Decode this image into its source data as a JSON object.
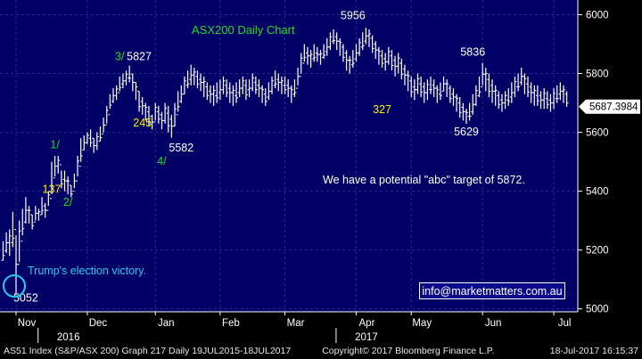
{
  "chart_data": {
    "type": "bar",
    "title": "ASX200 Daily Chart",
    "ylim": [
      4990,
      6050
    ],
    "yticks": [
      5000,
      5200,
      5400,
      5600,
      5800,
      6000
    ],
    "months": [
      {
        "label": "Nov",
        "x": 0
      },
      {
        "label": "Dec",
        "x": 22
      },
      {
        "label": "Jan",
        "x": 43
      },
      {
        "label": "Feb",
        "x": 63
      },
      {
        "label": "Mar",
        "x": 83
      },
      {
        "label": "Apr",
        "x": 105
      },
      {
        "label": "May",
        "x": 122
      },
      {
        "label": "Jun",
        "x": 144
      },
      {
        "label": "Jul",
        "x": 166
      }
    ],
    "years": [
      {
        "label": "2016",
        "x": 9
      },
      {
        "label": "2017",
        "x": 101
      }
    ],
    "last_value": "5687.3984",
    "last_value_num": 5687.3984,
    "bars": [
      [
        -4,
        5230,
        5165
      ],
      [
        -3,
        5260,
        5190
      ],
      [
        -2,
        5270,
        5180
      ],
      [
        -1,
        5330,
        5210
      ],
      [
        0,
        5250,
        5052
      ],
      [
        1,
        5300,
        5160
      ],
      [
        2,
        5340,
        5250
      ],
      [
        3,
        5380,
        5290
      ],
      [
        4,
        5350,
        5290
      ],
      [
        5,
        5320,
        5270
      ],
      [
        6,
        5350,
        5300
      ],
      [
        7,
        5340,
        5300
      ],
      [
        8,
        5380,
        5320
      ],
      [
        9,
        5360,
        5310
      ],
      [
        10,
        5400,
        5350
      ],
      [
        11,
        5500,
        5390
      ],
      [
        12,
        5520,
        5450
      ],
      [
        13,
        5520,
        5460
      ],
      [
        14,
        5470,
        5410
      ],
      [
        15,
        5470,
        5400
      ],
      [
        16,
        5450,
        5390
      ],
      [
        17,
        5420,
        5380
      ],
      [
        18,
        5460,
        5410
      ],
      [
        19,
        5520,
        5450
      ],
      [
        20,
        5580,
        5500
      ],
      [
        21,
        5590,
        5540
      ],
      [
        22,
        5600,
        5560
      ],
      [
        23,
        5610,
        5550
      ],
      [
        24,
        5580,
        5530
      ],
      [
        25,
        5600,
        5540
      ],
      [
        26,
        5620,
        5570
      ],
      [
        27,
        5650,
        5600
      ],
      [
        28,
        5690,
        5630
      ],
      [
        29,
        5730,
        5680
      ],
      [
        30,
        5750,
        5700
      ],
      [
        31,
        5760,
        5710
      ],
      [
        32,
        5790,
        5740
      ],
      [
        33,
        5800,
        5750
      ],
      [
        34,
        5810,
        5760
      ],
      [
        35,
        5827,
        5770
      ],
      [
        36,
        5800,
        5740
      ],
      [
        37,
        5770,
        5710
      ],
      [
        38,
        5740,
        5670
      ],
      [
        39,
        5720,
        5660
      ],
      [
        40,
        5700,
        5640
      ],
      [
        41,
        5690,
        5620
      ],
      [
        42,
        5660,
        5610
      ],
      [
        43,
        5700,
        5640
      ],
      [
        44,
        5690,
        5630
      ],
      [
        45,
        5670,
        5610
      ],
      [
        46,
        5700,
        5630
      ],
      [
        47,
        5690,
        5600
      ],
      [
        48,
        5660,
        5582
      ],
      [
        49,
        5700,
        5620
      ],
      [
        50,
        5740,
        5670
      ],
      [
        51,
        5760,
        5700
      ],
      [
        52,
        5790,
        5730
      ],
      [
        53,
        5810,
        5750
      ],
      [
        54,
        5830,
        5760
      ],
      [
        55,
        5820,
        5760
      ],
      [
        56,
        5810,
        5750
      ],
      [
        57,
        5800,
        5740
      ],
      [
        58,
        5790,
        5720
      ],
      [
        59,
        5770,
        5710
      ],
      [
        60,
        5760,
        5700
      ],
      [
        61,
        5760,
        5690
      ],
      [
        62,
        5770,
        5700
      ],
      [
        63,
        5780,
        5710
      ],
      [
        64,
        5790,
        5730
      ],
      [
        65,
        5780,
        5720
      ],
      [
        66,
        5770,
        5700
      ],
      [
        67,
        5760,
        5690
      ],
      [
        68,
        5770,
        5700
      ],
      [
        69,
        5780,
        5720
      ],
      [
        70,
        5790,
        5730
      ],
      [
        71,
        5780,
        5710
      ],
      [
        72,
        5780,
        5720
      ],
      [
        73,
        5800,
        5740
      ],
      [
        74,
        5790,
        5730
      ],
      [
        75,
        5780,
        5720
      ],
      [
        76,
        5760,
        5700
      ],
      [
        77,
        5750,
        5690
      ],
      [
        78,
        5770,
        5710
      ],
      [
        79,
        5790,
        5730
      ],
      [
        80,
        5810,
        5750
      ],
      [
        81,
        5800,
        5740
      ],
      [
        82,
        5790,
        5730
      ],
      [
        83,
        5790,
        5730
      ],
      [
        84,
        5780,
        5720
      ],
      [
        85,
        5760,
        5700
      ],
      [
        86,
        5780,
        5720
      ],
      [
        87,
        5820,
        5760
      ],
      [
        88,
        5870,
        5800
      ],
      [
        89,
        5900,
        5840
      ],
      [
        90,
        5890,
        5830
      ],
      [
        91,
        5880,
        5820
      ],
      [
        92,
        5900,
        5840
      ],
      [
        93,
        5890,
        5840
      ],
      [
        94,
        5880,
        5830
      ],
      [
        95,
        5900,
        5850
      ],
      [
        96,
        5920,
        5860
      ],
      [
        97,
        5940,
        5880
      ],
      [
        98,
        5950,
        5900
      ],
      [
        99,
        5940,
        5880
      ],
      [
        100,
        5920,
        5860
      ],
      [
        101,
        5900,
        5840
      ],
      [
        102,
        5880,
        5810
      ],
      [
        103,
        5860,
        5800
      ],
      [
        104,
        5880,
        5820
      ],
      [
        105,
        5900,
        5840
      ],
      [
        106,
        5920,
        5860
      ],
      [
        107,
        5940,
        5880
      ],
      [
        108,
        5956,
        5900
      ],
      [
        109,
        5950,
        5890
      ],
      [
        110,
        5930,
        5870
      ],
      [
        111,
        5910,
        5850
      ],
      [
        112,
        5890,
        5830
      ],
      [
        113,
        5880,
        5820
      ],
      [
        114,
        5870,
        5810
      ],
      [
        115,
        5890,
        5830
      ],
      [
        116,
        5880,
        5810
      ],
      [
        117,
        5860,
        5790
      ],
      [
        118,
        5870,
        5800
      ],
      [
        119,
        5850,
        5780
      ],
      [
        120,
        5830,
        5760
      ],
      [
        121,
        5810,
        5740
      ],
      [
        122,
        5790,
        5720
      ],
      [
        123,
        5780,
        5710
      ],
      [
        124,
        5800,
        5730
      ],
      [
        125,
        5790,
        5720
      ],
      [
        126,
        5770,
        5700
      ],
      [
        127,
        5780,
        5710
      ],
      [
        128,
        5790,
        5730
      ],
      [
        129,
        5780,
        5720
      ],
      [
        130,
        5760,
        5700
      ],
      [
        131,
        5770,
        5710
      ],
      [
        132,
        5790,
        5740
      ],
      [
        133,
        5780,
        5720
      ],
      [
        134,
        5760,
        5700
      ],
      [
        135,
        5750,
        5690
      ],
      [
        136,
        5730,
        5670
      ],
      [
        137,
        5720,
        5650
      ],
      [
        138,
        5700,
        5640
      ],
      [
        139,
        5680,
        5629
      ],
      [
        140,
        5700,
        5640
      ],
      [
        141,
        5730,
        5660
      ],
      [
        142,
        5760,
        5690
      ],
      [
        143,
        5790,
        5720
      ],
      [
        144,
        5836,
        5760
      ],
      [
        145,
        5820,
        5740
      ],
      [
        146,
        5800,
        5720
      ],
      [
        147,
        5780,
        5700
      ],
      [
        148,
        5760,
        5690
      ],
      [
        149,
        5740,
        5680
      ],
      [
        150,
        5730,
        5670
      ],
      [
        151,
        5740,
        5680
      ],
      [
        152,
        5750,
        5690
      ],
      [
        153,
        5770,
        5700
      ],
      [
        154,
        5790,
        5720
      ],
      [
        155,
        5800,
        5740
      ],
      [
        156,
        5820,
        5760
      ],
      [
        157,
        5800,
        5730
      ],
      [
        158,
        5790,
        5720
      ],
      [
        159,
        5770,
        5700
      ],
      [
        160,
        5760,
        5690
      ],
      [
        161,
        5760,
        5690
      ],
      [
        162,
        5740,
        5680
      ],
      [
        163,
        5750,
        5680
      ],
      [
        164,
        5740,
        5680
      ],
      [
        165,
        5730,
        5670
      ],
      [
        166,
        5750,
        5680
      ],
      [
        167,
        5760,
        5700
      ],
      [
        168,
        5770,
        5710
      ],
      [
        169,
        5760,
        5700
      ],
      [
        170,
        5740,
        5687
      ]
    ],
    "annotations": {
      "wave_labels": [
        {
          "text": "1/",
          "x": 12,
          "y": 5545,
          "color": "#22dd22"
        },
        {
          "text": "2/",
          "x": 16,
          "y": 5350,
          "color": "#22dd22"
        },
        {
          "text": "3/",
          "x": 32,
          "y": 5845,
          "color": "#22dd22"
        },
        {
          "text": "4/",
          "x": 45,
          "y": 5490,
          "color": "#22dd22"
        }
      ],
      "yellow_labels": [
        {
          "text": "137",
          "x": 11,
          "y": 5395,
          "color": "#ffee00"
        },
        {
          "text": "245",
          "x": 39,
          "y": 5620,
          "color": "#ffee00"
        },
        {
          "text": "327",
          "x": 113,
          "y": 5665,
          "color": "#ffee00"
        }
      ],
      "price_labels": [
        {
          "text": "5827",
          "x": 38,
          "y": 5845,
          "color": "#ffffff"
        },
        {
          "text": "5582",
          "x": 51,
          "y": 5535,
          "color": "#ffffff"
        },
        {
          "text": "5956",
          "x": 104,
          "y": 5985,
          "color": "#ffffff"
        },
        {
          "text": "5836",
          "x": 141,
          "y": 5860,
          "color": "#ffffff"
        },
        {
          "text": "5629",
          "x": 139,
          "y": 5590,
          "color": "#ffffff"
        },
        {
          "text": "5052",
          "x": 3,
          "y": 5025,
          "color": "#ffffff"
        }
      ],
      "election_text": "Trump's election victory.",
      "abc_text": "We have a potential \"abc\" target of 5872."
    }
  },
  "footer": {
    "left": "AS51 Index (S&P/ASX 200) Graph 217  Daily 19JUL2015-18JUL2017",
    "center": "Copyright© 2017 Bloomberg Finance L.P.",
    "right": "18-Jul-2017 16:15:37"
  },
  "email": "info@marketmatters.com.au",
  "colors": {
    "background": "#000066",
    "bars": "#ffffff",
    "grid": "#2a2a8a",
    "axis_bg": "#000000"
  }
}
